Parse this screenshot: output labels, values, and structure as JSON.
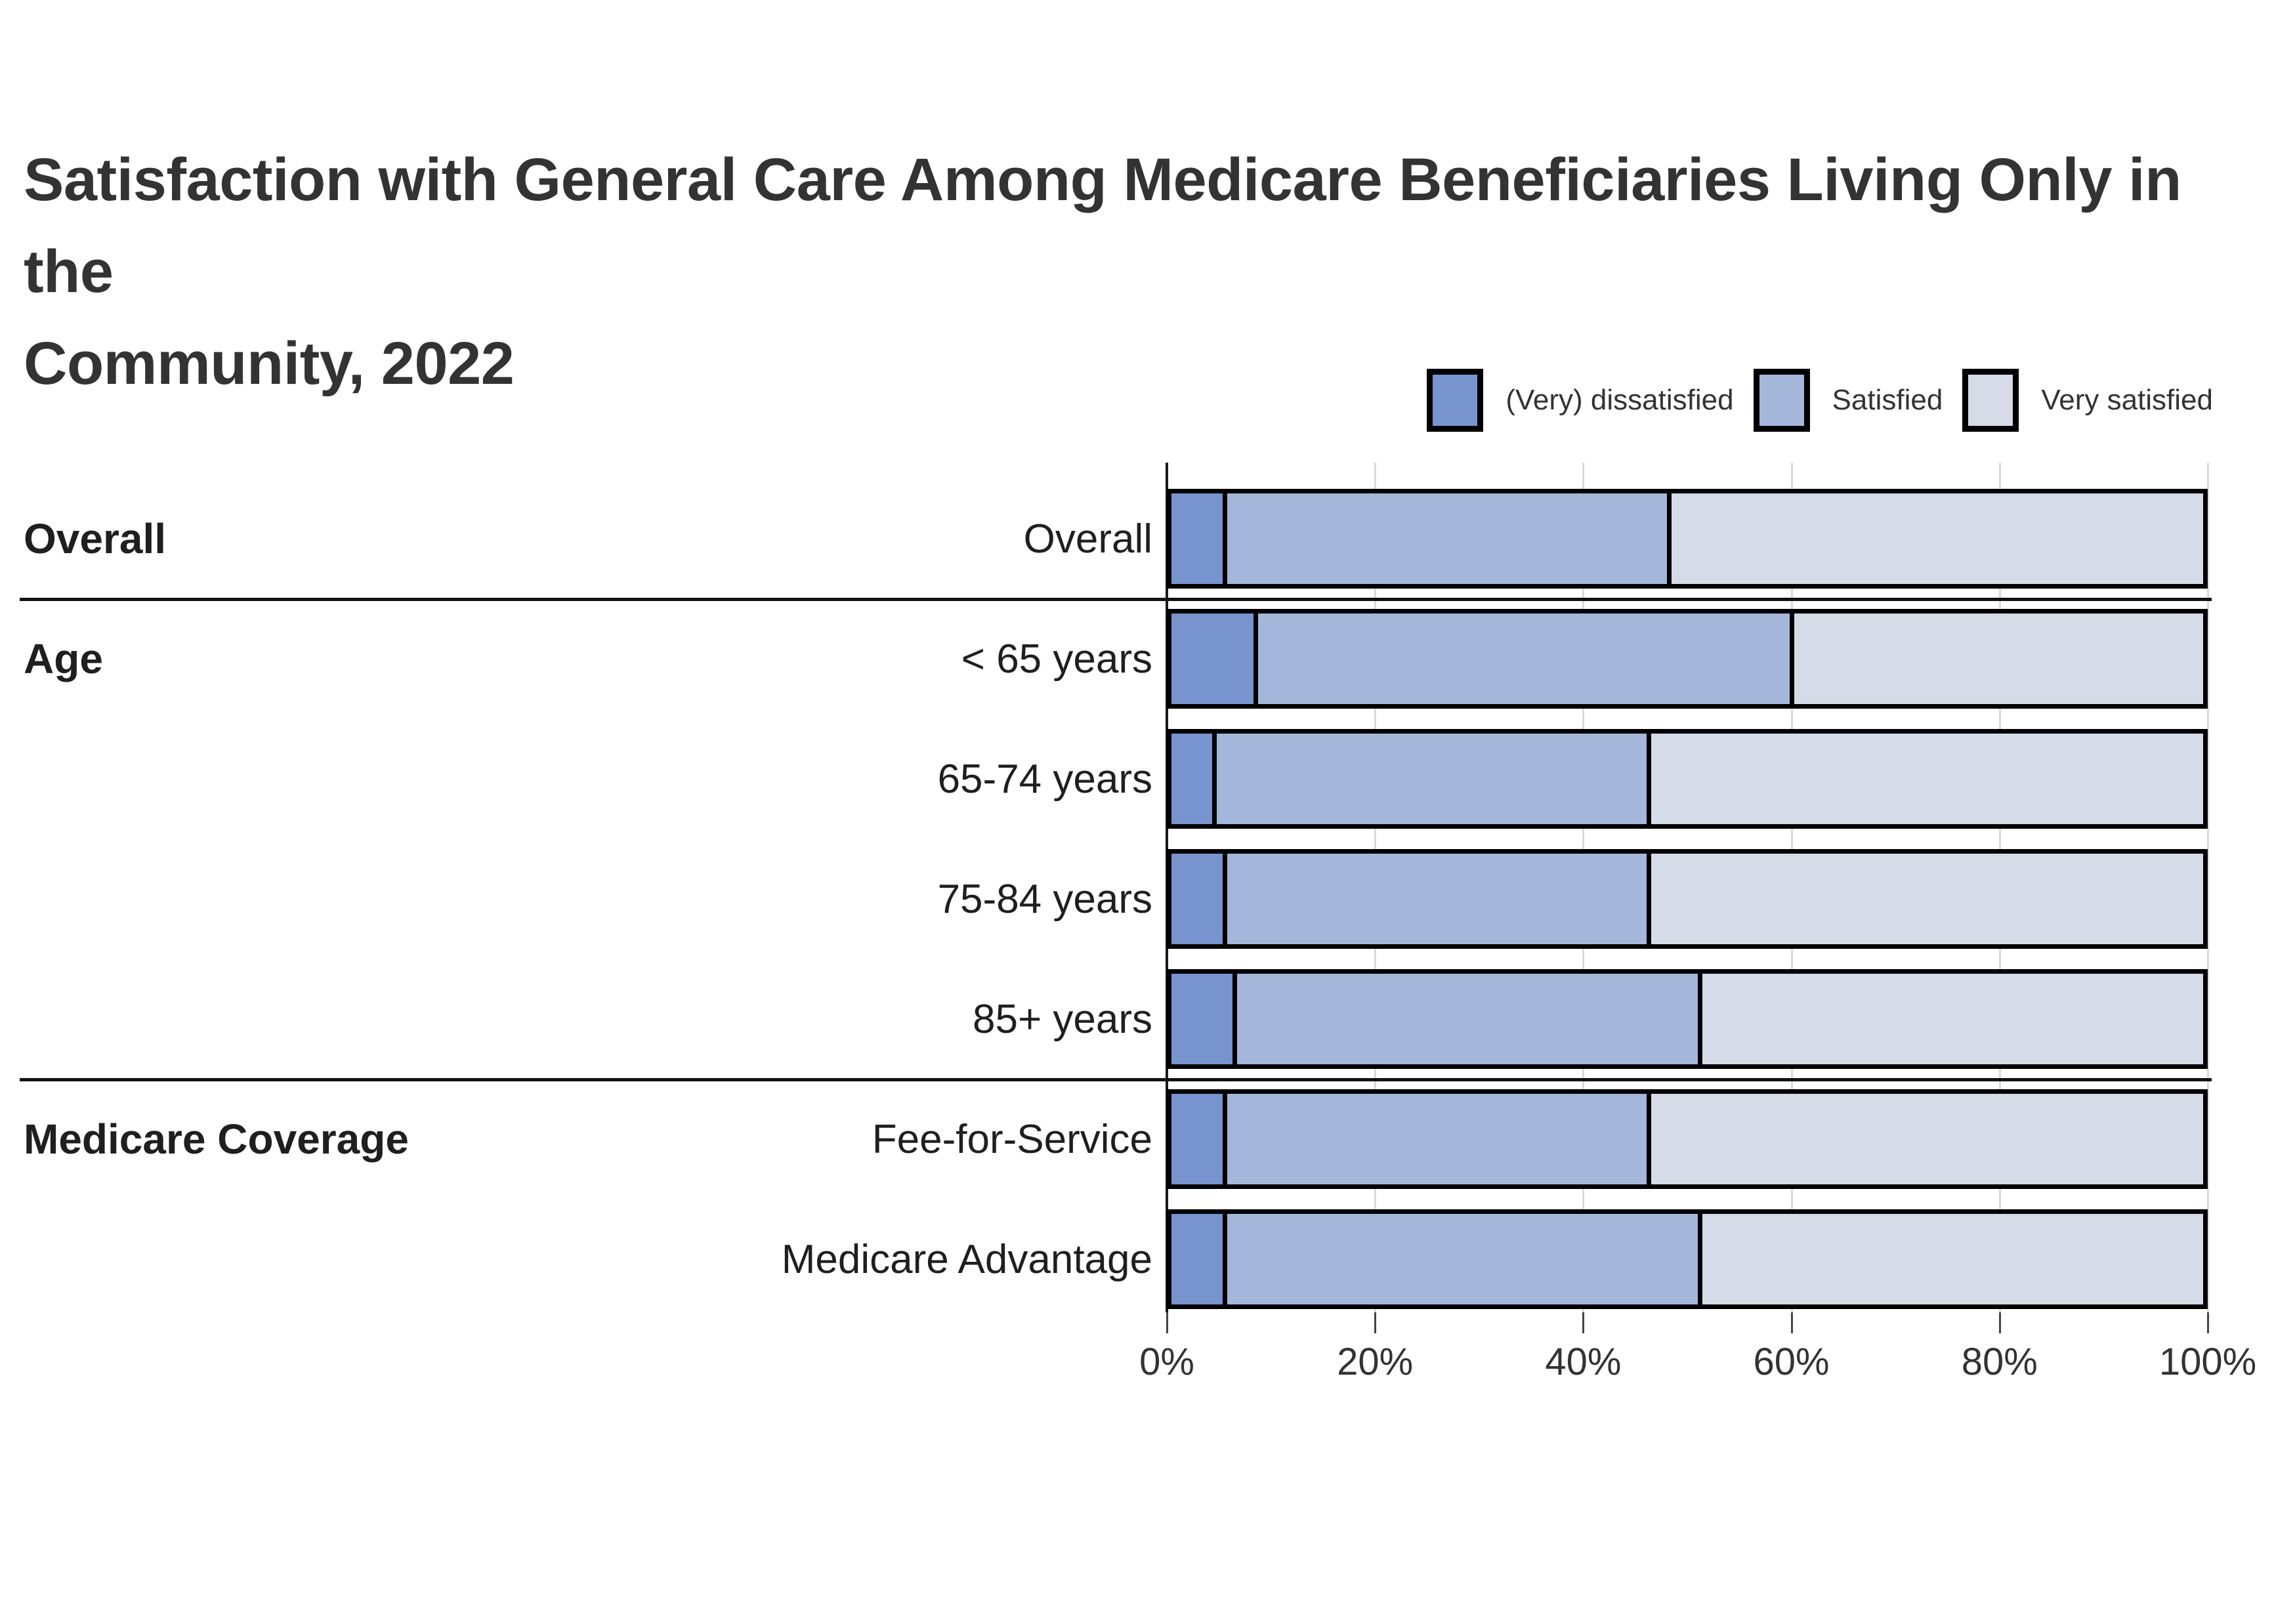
{
  "title": {
    "line1": "Satisfaction with General Care Among Medicare Beneficiaries Living Only in the",
    "line2": "Community, 2022"
  },
  "legend": {
    "items": [
      {
        "label": "(Very) dissatisfied",
        "color": "#7894CE"
      },
      {
        "label": "Satisfied",
        "color": "#A4B7DB"
      },
      {
        "label": "Very satisfied",
        "color": "#D5DBE7"
      }
    ]
  },
  "chart_data": {
    "type": "bar",
    "orientation": "horizontal",
    "stacked": true,
    "title": "Satisfaction with General Care Among Medicare Beneficiaries Living Only in the Community, 2022",
    "categories": [
      "Overall",
      "< 65 years",
      "65-74 years",
      "75-84 years",
      "85+ years",
      "Fee-for-Service",
      "Medicare Advantage"
    ],
    "groups": [
      {
        "label": "Overall",
        "row_indexes": [
          0
        ]
      },
      {
        "label": "Age",
        "row_indexes": [
          1,
          2,
          3,
          4
        ]
      },
      {
        "label": "Medicare Coverage",
        "row_indexes": [
          5,
          6
        ]
      }
    ],
    "series": [
      {
        "name": "(Very) dissatisfied",
        "color": "#7894CE",
        "values": [
          5,
          8,
          4,
          5,
          6,
          5,
          5
        ]
      },
      {
        "name": "Satisfied",
        "color": "#A4B7DB",
        "values": [
          43,
          52,
          42,
          41,
          45,
          41,
          46
        ]
      },
      {
        "name": "Very satisfied",
        "color": "#D5DBE7",
        "values": [
          52,
          40,
          54,
          54,
          49,
          54,
          49
        ]
      }
    ],
    "xlim": [
      0,
      100
    ],
    "x_ticks": [
      "0%",
      "20%",
      "40%",
      "60%",
      "80%",
      "100%"
    ],
    "x_tick_values": [
      0,
      20,
      40,
      60,
      80,
      100
    ],
    "units": "percent",
    "grid": true,
    "bar_border_color": "#000000",
    "grid_color": "#d9d9d9",
    "legend_position": "top-right"
  }
}
